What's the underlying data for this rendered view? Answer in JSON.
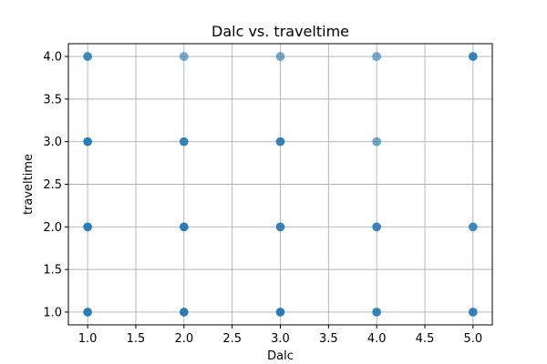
{
  "chart_data": {
    "type": "scatter",
    "title": "Dalc vs. traveltime",
    "xlabel": "Dalc",
    "ylabel": "traveltime",
    "xlim": [
      0.8,
      5.2
    ],
    "ylim": [
      0.85,
      4.15
    ],
    "xticks": [
      "1.0",
      "1.5",
      "2.0",
      "2.5",
      "3.0",
      "3.5",
      "4.0",
      "4.5",
      "5.0"
    ],
    "yticks": [
      "1.0",
      "1.5",
      "2.0",
      "2.5",
      "3.0",
      "3.5",
      "4.0"
    ],
    "grid": true,
    "marker_color": "#1f77b4",
    "points": [
      {
        "x": 1,
        "y": 1,
        "alpha": 0.95
      },
      {
        "x": 1,
        "y": 2,
        "alpha": 0.95
      },
      {
        "x": 1,
        "y": 3,
        "alpha": 0.95
      },
      {
        "x": 1,
        "y": 4,
        "alpha": 0.85
      },
      {
        "x": 2,
        "y": 1,
        "alpha": 0.95
      },
      {
        "x": 2,
        "y": 2,
        "alpha": 0.95
      },
      {
        "x": 2,
        "y": 3,
        "alpha": 0.9
      },
      {
        "x": 2,
        "y": 4,
        "alpha": 0.6
      },
      {
        "x": 3,
        "y": 1,
        "alpha": 0.95
      },
      {
        "x": 3,
        "y": 2,
        "alpha": 0.9
      },
      {
        "x": 3,
        "y": 3,
        "alpha": 0.9
      },
      {
        "x": 3,
        "y": 4,
        "alpha": 0.6
      },
      {
        "x": 4,
        "y": 1,
        "alpha": 0.9
      },
      {
        "x": 4,
        "y": 2,
        "alpha": 0.9
      },
      {
        "x": 4,
        "y": 3,
        "alpha": 0.6
      },
      {
        "x": 4,
        "y": 4,
        "alpha": 0.6
      },
      {
        "x": 5,
        "y": 1,
        "alpha": 0.9
      },
      {
        "x": 5,
        "y": 2,
        "alpha": 0.85
      },
      {
        "x": 5,
        "y": 4,
        "alpha": 0.9
      }
    ]
  }
}
